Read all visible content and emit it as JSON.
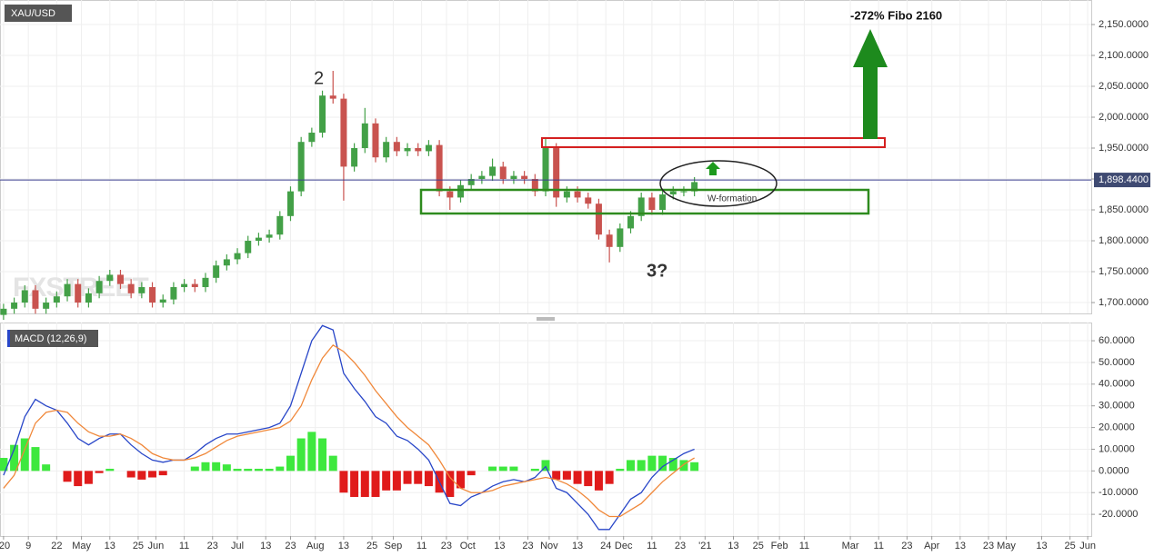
{
  "chart_data": [
    {
      "type": "candlestick",
      "title": "XAU/USD",
      "x": [
        0,
        3,
        6,
        9,
        12,
        15,
        18,
        21,
        24,
        27,
        30,
        33,
        36,
        39,
        42,
        45,
        48,
        51,
        54,
        57,
        60,
        63,
        66,
        69,
        72,
        75,
        78,
        81,
        84,
        87,
        90,
        93,
        96,
        99,
        102,
        105,
        108,
        111,
        114,
        117,
        120,
        123,
        126,
        129,
        132,
        135,
        138,
        141,
        144,
        147,
        150,
        153,
        156,
        159,
        162,
        165,
        168,
        171,
        174,
        177,
        180,
        183,
        186,
        189,
        192,
        195
      ],
      "open": [
        1680,
        1690,
        1700,
        1720,
        1690,
        1700,
        1710,
        1730,
        1700,
        1715,
        1735,
        1745,
        1730,
        1715,
        1725,
        1700,
        1705,
        1725,
        1730,
        1725,
        1740,
        1760,
        1770,
        1780,
        1800,
        1805,
        1810,
        1840,
        1880,
        1960,
        1975,
        2035,
        2030,
        1920,
        1950,
        1990,
        1935,
        1960,
        1945,
        1950,
        1945,
        1955,
        1880,
        1870,
        1890,
        1900,
        1905,
        1920,
        1900,
        1905,
        1900,
        1880,
        1950,
        1870,
        1880,
        1870,
        1860,
        1810,
        1790,
        1820,
        1840,
        1870,
        1850,
        1875,
        1880,
        1880
      ],
      "high": [
        1698,
        1708,
        1728,
        1728,
        1708,
        1718,
        1738,
        1738,
        1723,
        1743,
        1753,
        1753,
        1738,
        1733,
        1733,
        1713,
        1733,
        1738,
        1738,
        1748,
        1768,
        1778,
        1788,
        1808,
        1813,
        1818,
        1848,
        1888,
        1968,
        1983,
        2043,
        2075,
        2038,
        1958,
        2015,
        1998,
        1968,
        1968,
        1958,
        1958,
        1963,
        1963,
        1888,
        1898,
        1908,
        1913,
        1933,
        1928,
        1913,
        1913,
        1908,
        1965,
        1958,
        1888,
        1888,
        1878,
        1868,
        1818,
        1828,
        1848,
        1878,
        1878,
        1883,
        1888,
        1888,
        1903
      ],
      "low": [
        1672,
        1682,
        1692,
        1682,
        1682,
        1692,
        1702,
        1692,
        1692,
        1707,
        1727,
        1722,
        1707,
        1707,
        1692,
        1692,
        1697,
        1717,
        1717,
        1717,
        1732,
        1752,
        1762,
        1772,
        1792,
        1797,
        1802,
        1832,
        1872,
        1952,
        1967,
        2022,
        1865,
        1912,
        1942,
        1927,
        1927,
        1937,
        1937,
        1937,
        1937,
        1872,
        1850,
        1862,
        1882,
        1892,
        1897,
        1892,
        1892,
        1892,
        1872,
        1872,
        1855,
        1862,
        1862,
        1852,
        1802,
        1765,
        1782,
        1812,
        1832,
        1842,
        1842,
        1867,
        1872,
        1872
      ],
      "close": [
        1690,
        1700,
        1720,
        1690,
        1700,
        1710,
        1730,
        1700,
        1715,
        1735,
        1745,
        1730,
        1715,
        1725,
        1700,
        1705,
        1725,
        1730,
        1725,
        1740,
        1760,
        1770,
        1780,
        1800,
        1805,
        1810,
        1840,
        1880,
        1960,
        1975,
        2035,
        2030,
        1920,
        1950,
        1990,
        1935,
        1960,
        1945,
        1950,
        1945,
        1955,
        1880,
        1870,
        1890,
        1900,
        1905,
        1920,
        1900,
        1905,
        1900,
        1880,
        1950,
        1870,
        1880,
        1870,
        1860,
        1810,
        1790,
        1820,
        1840,
        1870,
        1850,
        1875,
        1880,
        1880,
        1895
      ],
      "up_color": "#43a047",
      "down_color": "#c9534f",
      "xlim": [
        -1,
        307
      ],
      "xticks": [
        {
          "value": 0,
          "label": "'20"
        },
        {
          "value": 7,
          "label": "9"
        },
        {
          "value": 15,
          "label": "22"
        },
        {
          "value": 22,
          "label": "May"
        },
        {
          "value": 30,
          "label": "13"
        },
        {
          "value": 38,
          "label": "25"
        },
        {
          "value": 43,
          "label": "Jun"
        },
        {
          "value": 51,
          "label": "11"
        },
        {
          "value": 59,
          "label": "23"
        },
        {
          "value": 66,
          "label": "Jul"
        },
        {
          "value": 74,
          "label": "13"
        },
        {
          "value": 81,
          "label": "23"
        },
        {
          "value": 88,
          "label": "Aug"
        },
        {
          "value": 96,
          "label": "13"
        },
        {
          "value": 104,
          "label": "25"
        },
        {
          "value": 110,
          "label": "Sep"
        },
        {
          "value": 118,
          "label": "11"
        },
        {
          "value": 125,
          "label": "23"
        },
        {
          "value": 131,
          "label": "Oct"
        },
        {
          "value": 140,
          "label": "13"
        },
        {
          "value": 148,
          "label": "23"
        },
        {
          "value": 154,
          "label": "Nov"
        },
        {
          "value": 162,
          "label": "13"
        },
        {
          "value": 170,
          "label": "24"
        },
        {
          "value": 175,
          "label": "Dec"
        },
        {
          "value": 183,
          "label": "11"
        },
        {
          "value": 191,
          "label": "23"
        },
        {
          "value": 198,
          "label": "'21"
        },
        {
          "value": 206,
          "label": "13"
        },
        {
          "value": 213,
          "label": "25"
        },
        {
          "value": 219,
          "label": "Feb"
        },
        {
          "value": 226,
          "label": "11"
        },
        {
          "value": 239,
          "label": "Mar"
        },
        {
          "value": 247,
          "label": "11"
        },
        {
          "value": 255,
          "label": "23"
        },
        {
          "value": 262,
          "label": "Apr"
        },
        {
          "value": 270,
          "label": "13"
        },
        {
          "value": 278,
          "label": "23"
        },
        {
          "value": 283,
          "label": "May"
        },
        {
          "value": 293,
          "label": "13"
        },
        {
          "value": 301,
          "label": "25"
        },
        {
          "value": 306,
          "label": "Jun"
        }
      ],
      "ylim": [
        1682.4,
        2189.7
      ],
      "yticks": [
        {
          "value": 1700,
          "label": "1,700.0000"
        },
        {
          "value": 1750,
          "label": "1,750.0000"
        },
        {
          "value": 1800,
          "label": "1,800.0000"
        },
        {
          "value": 1850,
          "label": "1,850.0000"
        },
        {
          "value": 1900,
          "label": "1,900.0000"
        },
        {
          "value": 1950,
          "label": "1,950.0000"
        },
        {
          "value": 2000,
          "label": "2,000.0000"
        },
        {
          "value": 2050,
          "label": "2,050.0000"
        },
        {
          "value": 2100,
          "label": "2,100.0000"
        },
        {
          "value": 2150,
          "label": "2,150.0000"
        }
      ],
      "last_price": {
        "value": 1898.44,
        "label": "1,898.4400"
      },
      "annotations": [
        "2",
        "3?",
        "W-formation",
        "-272% Fibo 2160"
      ],
      "watermark": "FXSTREET"
    },
    {
      "type": "macd",
      "title": "MACD (12,26,9)",
      "x": [
        0,
        3,
        6,
        9,
        12,
        15,
        18,
        21,
        24,
        27,
        30,
        33,
        36,
        39,
        42,
        45,
        48,
        51,
        54,
        57,
        60,
        63,
        66,
        69,
        72,
        75,
        78,
        81,
        84,
        87,
        90,
        93,
        96,
        99,
        102,
        105,
        108,
        111,
        114,
        117,
        120,
        123,
        126,
        129,
        132,
        135,
        138,
        141,
        144,
        147,
        150,
        153,
        156,
        159,
        162,
        165,
        168,
        171,
        174,
        177,
        180,
        183,
        186,
        189,
        192,
        195
      ],
      "xlim": [
        -1,
        307
      ],
      "series": [
        {
          "color": "#2846c8",
          "values": [
            -2,
            10,
            25,
            33,
            30,
            28,
            22,
            15,
            12,
            15,
            17,
            17,
            12,
            8,
            5,
            4,
            5,
            5,
            8,
            12,
            15,
            17,
            17,
            18,
            19,
            20,
            22,
            30,
            45,
            60,
            67,
            65,
            45,
            38,
            32,
            25,
            22,
            16,
            14,
            10,
            5,
            -5,
            -15,
            -16,
            -12,
            -10,
            -7,
            -5,
            -4,
            -5,
            -3,
            2,
            -8,
            -10,
            -15,
            -20,
            -27,
            -27,
            -20,
            -13,
            -10,
            -3,
            2,
            5,
            8,
            10
          ]
        },
        {
          "color": "#f0883a",
          "values": [
            -8,
            -2,
            10,
            22,
            27,
            28,
            27,
            22,
            18,
            16,
            16,
            17,
            15,
            12,
            8,
            6,
            5,
            5,
            6,
            8,
            11,
            14,
            16,
            17,
            18,
            19,
            20,
            23,
            30,
            42,
            52,
            58,
            55,
            50,
            44,
            37,
            31,
            25,
            20,
            16,
            12,
            5,
            -3,
            -8,
            -10,
            -10,
            -9,
            -7,
            -6,
            -5,
            -4,
            -3,
            -4,
            -6,
            -9,
            -13,
            -18,
            -21,
            -21,
            -18,
            -15,
            -10,
            -5,
            -1,
            3,
            6
          ]
        }
      ],
      "histogram": {
        "up_color": "#3ee83e",
        "down_color": "#e01b1b",
        "values": [
          6,
          12,
          15,
          11,
          3,
          0,
          -5,
          -7,
          -6,
          -1,
          1,
          0,
          -3,
          -4,
          -3,
          -2,
          0,
          0,
          2,
          4,
          4,
          3,
          1,
          1,
          1,
          1,
          2,
          7,
          15,
          18,
          15,
          7,
          -10,
          -12,
          -12,
          -12,
          -9,
          -9,
          -6,
          -6,
          -7,
          -10,
          -12,
          -8,
          -2,
          0,
          2,
          2,
          2,
          0,
          1,
          5,
          -4,
          -4,
          -6,
          -7,
          -9,
          -6,
          1,
          5,
          5,
          7,
          7,
          6,
          5,
          4
        ]
      },
      "ylim": [
        -30,
        68.4
      ],
      "yticks": [
        {
          "value": -20,
          "label": "-20.0000"
        },
        {
          "value": -10,
          "label": "-10.0000"
        },
        {
          "value": 0,
          "label": "0.0000"
        },
        {
          "value": 10,
          "label": "10.0000"
        },
        {
          "value": 20,
          "label": "20.0000"
        },
        {
          "value": 30,
          "label": "30.0000"
        },
        {
          "value": 40,
          "label": "40.0000"
        },
        {
          "value": 50,
          "label": "50.0000"
        },
        {
          "value": 60,
          "label": "60.0000"
        }
      ]
    }
  ]
}
